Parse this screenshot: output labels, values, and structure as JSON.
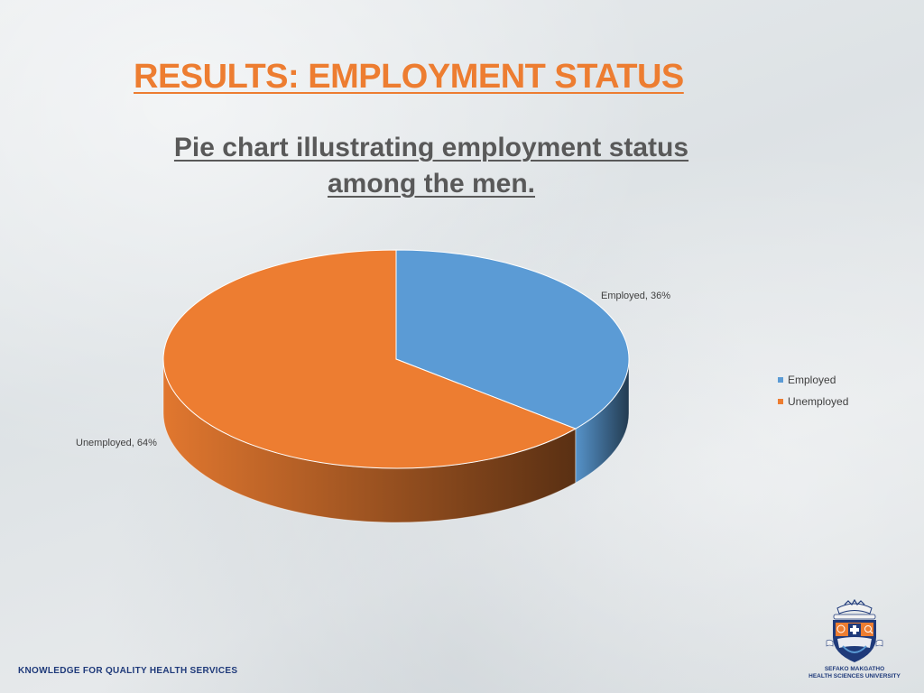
{
  "slide": {
    "title": "RESULTS: EMPLOYMENT STATUS",
    "subtitle_line1": "Pie chart illustrating employment status",
    "subtitle_line2": "among the men.",
    "footer": "KNOWLEDGE  FOR  QUALITY  HEALTH  SERVICES",
    "logo_caption_line1": "SEFAKO MAKGATHO",
    "logo_caption_line2": "HEALTH SCIENCES UNIVERSITY"
  },
  "colors": {
    "title": "#ed7d31",
    "employed": "#5b9bd5",
    "unemployed": "#ed7d31",
    "footer": "#1f3a7a"
  },
  "chart_data": {
    "type": "pie",
    "title": "",
    "style": "3d",
    "categories": [
      "Employed",
      "Unemployed"
    ],
    "values": [
      36,
      64
    ],
    "unit": "%",
    "data_labels": [
      "Employed, 36%",
      "Unemployed, 64%"
    ],
    "legend": {
      "placement": "right",
      "entries": [
        "Employed",
        "Unemployed"
      ]
    }
  }
}
